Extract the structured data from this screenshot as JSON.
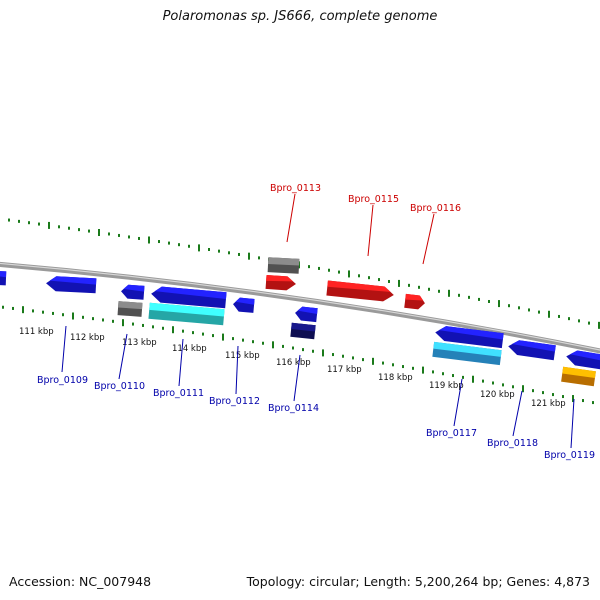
{
  "title": "Polaromonas sp. JS666, complete genome",
  "footer": {
    "accession": "Accession: NC_007948",
    "summary": "Topology: circular; Length: 5,200,264 bp; Genes: 4,873"
  },
  "colors": {
    "backbone": "#8a8a8a",
    "tick": "#1a7a1a",
    "forward_gene": "#ff1a1a",
    "reverse_gene": "#1a1aff",
    "gray_feature": "#707070",
    "cyan_feature": "#33e6e6",
    "light_blue_feature": "#33b3ff",
    "navy_feature": "#141470",
    "orange_feature": "#ff9900",
    "forward_label": "#cc0000",
    "reverse_label": "#0000aa"
  },
  "kbp_labels": [
    "111 kbp",
    "112 kbp",
    "113 kbp",
    "114 kbp",
    "115 kbp",
    "116 kbp",
    "117 kbp",
    "118 kbp",
    "119 kbp",
    "120 kbp",
    "121 kbp"
  ],
  "forward_labels": [
    "Bpro_0113",
    "Bpro_0115",
    "Bpro_0116"
  ],
  "reverse_labels": [
    "Bpro_0109",
    "Bpro_0110",
    "Bpro_0111",
    "Bpro_0112",
    "Bpro_0114",
    "Bpro_0117",
    "Bpro_0118",
    "Bpro_0119"
  ]
}
